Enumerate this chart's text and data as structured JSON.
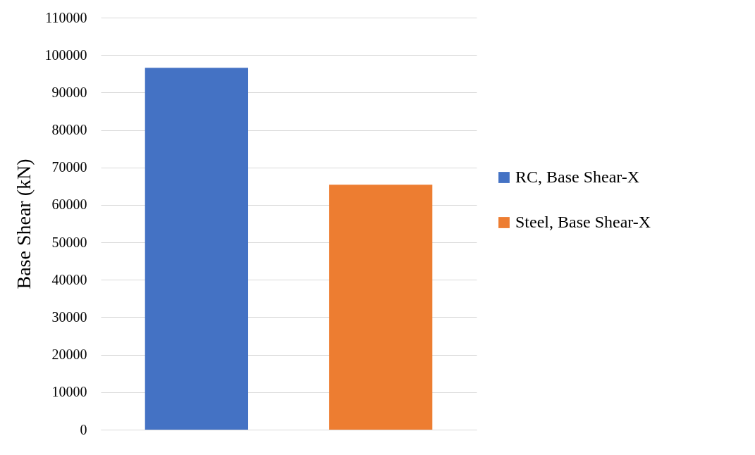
{
  "chart_data": {
    "type": "bar",
    "ylabel": "Base Shear (kN)",
    "categories": [
      null
    ],
    "series": [
      {
        "name": "RC, Base Shear-X",
        "color": "#4472c4",
        "values": [
          96600
        ]
      },
      {
        "name": "Steel, Base Shear-X",
        "color": "#ed7d31",
        "values": [
          65400
        ]
      }
    ],
    "ylim": [
      0,
      110000
    ],
    "yticks": [
      0,
      10000,
      20000,
      30000,
      40000,
      50000,
      60000,
      70000,
      80000,
      90000,
      100000,
      110000
    ],
    "grid": "y",
    "legend": "right",
    "tick_labels": "y"
  }
}
